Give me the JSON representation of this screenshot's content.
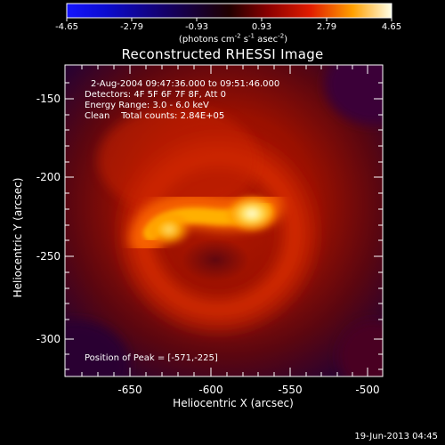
{
  "colorbar": {
    "ticks": [
      "-4.65",
      "-2.79",
      "-0.93",
      "0.93",
      "2.79",
      "4.65"
    ],
    "units_prefix": "(photons cm",
    "units_exp1": "-2",
    "units_mid": " s",
    "units_exp2": "-1",
    "units_mid2": " asec",
    "units_exp3": "-2",
    "units_suffix": ")"
  },
  "title": "Reconstructed RHESSI Image",
  "info": {
    "time": "2-Aug-2004 09:47:36.000 to 09:51:46.000",
    "detectors": "Detectors: 4F 5F 6F 7F 8F, Att 0",
    "energy": "Energy Range: 3.0 - 6.0 keV",
    "clean": "Clean    Total counts: 2.84E+05"
  },
  "peak_label": "Position of Peak = [-571,-225]",
  "axes": {
    "xlabel": "Heliocentric X (arcsec)",
    "ylabel": "Heliocentric Y (arcsec)",
    "x_ticks": [
      "-650",
      "-600",
      "-550",
      "-500"
    ],
    "y_ticks": [
      "-150",
      "-200",
      "-250",
      "-300"
    ]
  },
  "footer_date": "19-Jun-2013 04:45",
  "colors": {
    "background": "#000000",
    "axes": "#ffffff"
  }
}
